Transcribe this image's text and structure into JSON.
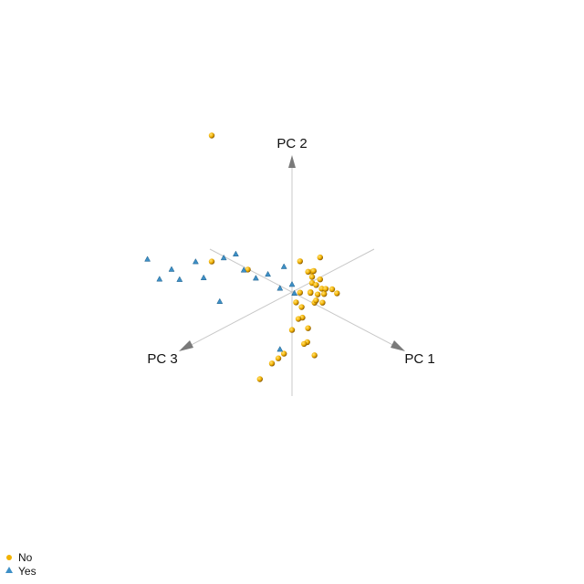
{
  "chart_data": {
    "type": "scatter",
    "projection": "3d",
    "axes": [
      "PC 1",
      "PC 2",
      "PC 3"
    ],
    "grid": false,
    "legend_placement": "bottom-left",
    "series": [
      {
        "name": "No",
        "marker": "sphere",
        "color": "#f2b200",
        "points": [
          [
            0.2,
            0.35,
            0.1
          ],
          [
            0.3,
            0.28,
            0.05
          ],
          [
            0.25,
            0.2,
            0.0
          ],
          [
            0.35,
            0.22,
            0.1
          ],
          [
            0.4,
            0.25,
            0.05
          ],
          [
            0.45,
            0.2,
            0.08
          ],
          [
            0.3,
            0.15,
            0.0
          ],
          [
            0.28,
            0.1,
            0.05
          ],
          [
            0.38,
            0.12,
            0.06
          ],
          [
            0.5,
            0.18,
            0.1
          ],
          [
            0.55,
            0.22,
            0.05
          ],
          [
            0.22,
            0.24,
            0.02
          ],
          [
            0.33,
            0.3,
            0.06
          ],
          [
            0.42,
            0.16,
            0.0
          ],
          [
            0.36,
            0.05,
            0.08
          ],
          [
            0.48,
            0.1,
            0.1
          ],
          [
            0.6,
            0.2,
            0.04
          ],
          [
            0.26,
            0.08,
            0.03
          ],
          [
            0.3,
            0.02,
            0.0
          ],
          [
            0.15,
            0.05,
            0.05
          ],
          [
            0.12,
            -0.1,
            0.0
          ],
          [
            0.18,
            -0.15,
            0.05
          ],
          [
            0.1,
            -0.2,
            0.02
          ],
          [
            0.2,
            -0.25,
            0.0
          ],
          [
            0.22,
            -0.35,
            0.03
          ],
          [
            0.15,
            -0.4,
            0.0
          ],
          [
            0.05,
            -0.3,
            0.05
          ],
          [
            0.0,
            -0.5,
            0.1
          ],
          [
            -0.05,
            -0.55,
            0.12
          ],
          [
            -0.1,
            -0.6,
            0.15
          ],
          [
            -0.2,
            -0.75,
            0.2
          ],
          [
            0.28,
            -0.45,
            0.0
          ],
          [
            -0.7,
            0.1,
            0.3
          ],
          [
            -1.0,
            0.95,
            0.0
          ],
          [
            -0.45,
            0.05,
            0.1
          ],
          [
            0.35,
            0.4,
            0.0
          ],
          [
            0.1,
            -0.05,
            0.05
          ]
        ]
      },
      {
        "name": "Yes",
        "marker": "triangle",
        "color": "#3d8fc6",
        "points": [
          [
            -0.5,
            0.2,
            0.2
          ],
          [
            -0.6,
            0.15,
            0.25
          ],
          [
            -0.8,
            0.1,
            0.4
          ],
          [
            -1.0,
            0.0,
            0.5
          ],
          [
            -1.1,
            -0.1,
            0.55
          ],
          [
            -0.9,
            -0.05,
            0.5
          ],
          [
            -0.7,
            0.0,
            0.4
          ],
          [
            -0.4,
            0.1,
            0.2
          ],
          [
            -0.3,
            0.05,
            0.15
          ],
          [
            -0.2,
            0.1,
            0.1
          ],
          [
            -0.1,
            0.0,
            0.05
          ],
          [
            0.0,
            0.05,
            0.0
          ],
          [
            0.05,
            0.0,
            0.02
          ],
          [
            -0.05,
            0.2,
            0.05
          ],
          [
            -0.6,
            -0.2,
            0.3
          ],
          [
            -1.2,
            0.05,
            0.6
          ],
          [
            -0.15,
            -0.55,
            0.0
          ]
        ]
      }
    ]
  }
}
